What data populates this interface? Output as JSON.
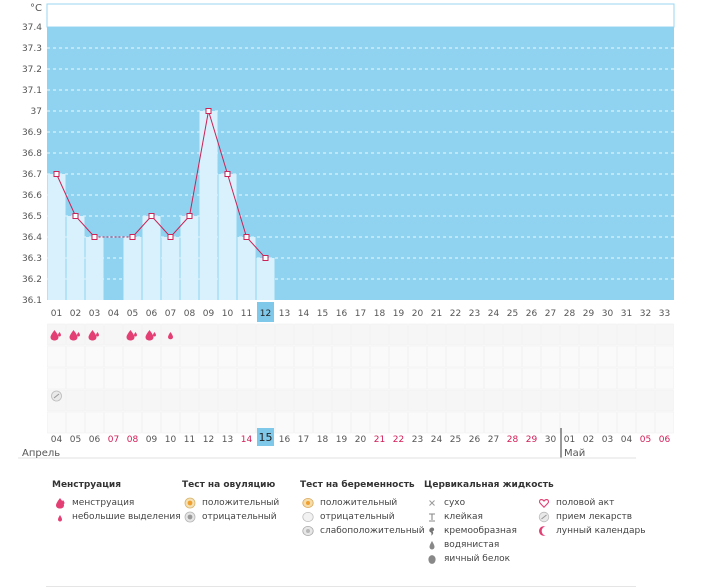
{
  "chart_data": {
    "type": "line",
    "ylabel": "°C",
    "ylim": [
      36.1,
      37.4
    ],
    "yticks": [
      "37.4",
      "37.3",
      "37.2",
      "37.1",
      "37",
      "36.9",
      "36.8",
      "36.7",
      "36.6",
      "36.5",
      "36.4",
      "36.3",
      "36.2",
      "36.1"
    ],
    "cycle_days": [
      "01",
      "02",
      "03",
      "04",
      "05",
      "06",
      "07",
      "08",
      "09",
      "10",
      "11",
      "12",
      "13",
      "14",
      "15",
      "16",
      "17",
      "18",
      "19",
      "20",
      "21",
      "22",
      "23",
      "24",
      "25",
      "26",
      "27",
      "28",
      "29",
      "30",
      "31",
      "32",
      "33"
    ],
    "temperatures": [
      36.7,
      36.5,
      36.4,
      null,
      36.4,
      36.5,
      36.4,
      36.5,
      37.0,
      36.7,
      36.4,
      36.3
    ],
    "menstruation": [
      "heavy",
      "heavy",
      "heavy",
      null,
      "heavy",
      "heavy",
      "light"
    ],
    "medication_days": [
      1
    ],
    "current_cycle_day": "12",
    "dates": [
      {
        "d": "04",
        "w": false
      },
      {
        "d": "05",
        "w": false
      },
      {
        "d": "06",
        "w": false
      },
      {
        "d": "07",
        "w": true
      },
      {
        "d": "08",
        "w": true
      },
      {
        "d": "09",
        "w": false
      },
      {
        "d": "10",
        "w": false
      },
      {
        "d": "11",
        "w": false
      },
      {
        "d": "12",
        "w": false
      },
      {
        "d": "13",
        "w": false
      },
      {
        "d": "14",
        "w": true
      },
      {
        "d": "15",
        "w": false
      },
      {
        "d": "16",
        "w": false
      },
      {
        "d": "17",
        "w": false
      },
      {
        "d": "18",
        "w": false
      },
      {
        "d": "19",
        "w": false
      },
      {
        "d": "20",
        "w": false
      },
      {
        "d": "21",
        "w": true
      },
      {
        "d": "22",
        "w": true
      },
      {
        "d": "23",
        "w": false
      },
      {
        "d": "24",
        "w": false
      },
      {
        "d": "25",
        "w": false
      },
      {
        "d": "26",
        "w": false
      },
      {
        "d": "27",
        "w": false
      },
      {
        "d": "28",
        "w": true
      },
      {
        "d": "29",
        "w": true
      },
      {
        "d": "30",
        "w": false
      },
      {
        "d": "01",
        "w": false
      },
      {
        "d": "02",
        "w": false
      },
      {
        "d": "03",
        "w": false
      },
      {
        "d": "04",
        "w": false
      },
      {
        "d": "05",
        "w": true
      },
      {
        "d": "06",
        "w": true
      }
    ],
    "today_date": "15",
    "months": [
      "Апрель",
      "Май"
    ]
  },
  "legend": {
    "menstruation": {
      "title": "Менструация",
      "items": [
        "менструация",
        "небольшие выделения"
      ]
    },
    "ovulation": {
      "title": "Тест на овуляцию",
      "items": [
        "положительный",
        "отрицательный"
      ]
    },
    "pregnancy": {
      "title": "Тест на беременность",
      "items": [
        "положительный",
        "отрицательный",
        "слабоположительный"
      ]
    },
    "cervical": {
      "title": "Цервикальная жидкость",
      "items": [
        "сухо",
        "клейкая",
        "кремообразная",
        "водянистая",
        "яичный белок"
      ]
    },
    "other": {
      "items": [
        "половой акт",
        "прием лекарств",
        "лунный календарь"
      ]
    }
  },
  "colors": {
    "plot_bg": "#8fd3f0",
    "bar": "#d8f1fc",
    "line": "#cc2255",
    "weekend": "#d01c55",
    "today": "#7fc8ea"
  }
}
